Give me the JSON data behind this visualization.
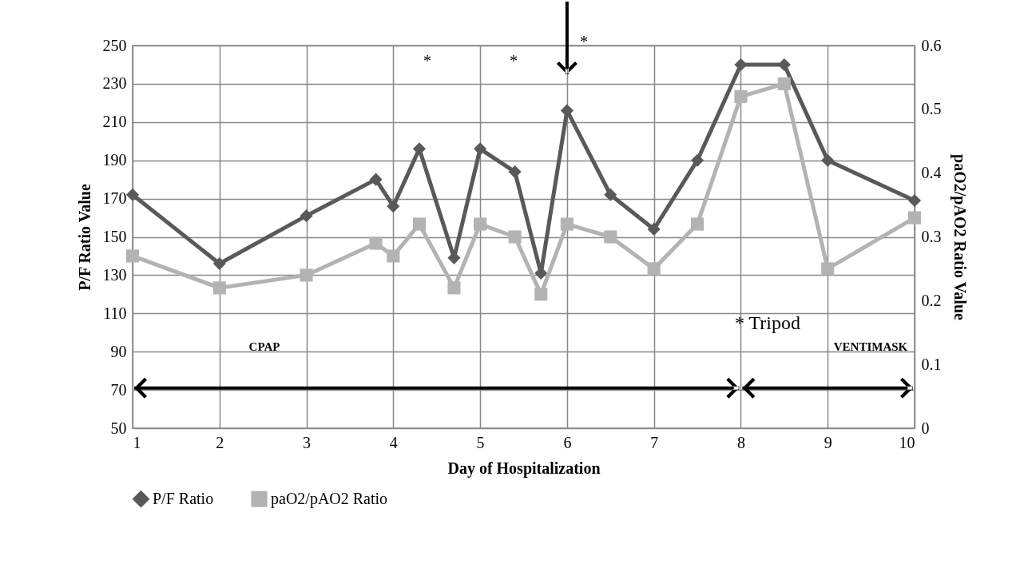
{
  "chart_data": {
    "type": "line",
    "xlabel": "Day of Hospitalization",
    "ylabel": "P/F Ratio Value",
    "y2label": "paO2/pAO2 Ratio Value",
    "x": [
      1,
      2,
      3,
      3.8,
      4,
      4.3,
      4.7,
      5,
      5.4,
      5.7,
      6,
      6.5,
      7,
      7.5,
      8,
      8.5,
      9,
      10
    ],
    "series": [
      {
        "name": "P/F Ratio",
        "color": "#595959",
        "marker": "diamond",
        "values": [
          172,
          136,
          161,
          180,
          166,
          196,
          139,
          196,
          184,
          131,
          216,
          172,
          154,
          190,
          240,
          240,
          190,
          169
        ]
      },
      {
        "name": "paO2/pAO2 Ratio",
        "color": "#b3b3b3",
        "marker": "square",
        "axis": "y2",
        "values": [
          0.27,
          0.22,
          0.24,
          0.29,
          0.27,
          0.32,
          0.22,
          0.32,
          0.3,
          0.21,
          0.32,
          0.3,
          0.25,
          0.32,
          0.52,
          0.54,
          0.25,
          0.33
        ]
      }
    ],
    "xlim": [
      1,
      10
    ],
    "xticks": [
      1,
      2,
      3,
      4,
      5,
      6,
      7,
      8,
      9,
      10
    ],
    "ylim": [
      50,
      250
    ],
    "yticks": [
      50,
      70,
      90,
      110,
      130,
      150,
      170,
      190,
      210,
      230,
      250
    ],
    "y2lim": [
      0,
      0.6
    ],
    "y2ticks": [
      0,
      0.1,
      0.2,
      0.3,
      0.4,
      0.5,
      0.6
    ],
    "grid": true,
    "legend": "bottom",
    "annotations": [
      "*",
      "*",
      "*",
      "* Tripod",
      "CPAP",
      "VENTIMASK"
    ]
  }
}
